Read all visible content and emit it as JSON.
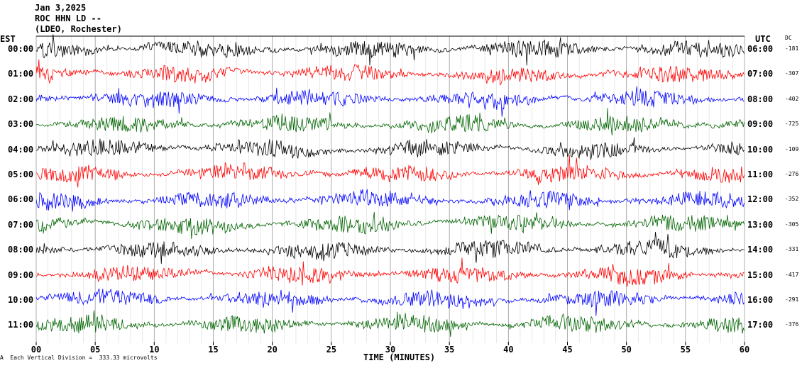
{
  "header": {
    "date": "Jan 3,2025",
    "station": "ROC HHN LD --",
    "network": "(LDEO, Rochester)"
  },
  "left_tz": "EST",
  "right_tz": "UTC",
  "dc_heading": "DC",
  "footer": {
    "logo_mark": "A",
    "scale_text": "Each Vertical Division =  333.33 microvolts"
  },
  "colors": {
    "cycle": [
      "#000000",
      "#ff0000",
      "#0000ff",
      "#006400"
    ]
  },
  "chart_data": {
    "type": "line",
    "title": "ROC HHN LD --",
    "xlabel": "TIME (MINUTES)",
    "xlim": [
      0,
      60
    ],
    "x_ticks": [
      "00",
      "05",
      "10",
      "15",
      "20",
      "25",
      "30",
      "35",
      "40",
      "45",
      "50",
      "55",
      "60"
    ],
    "grid": true,
    "rows": [
      {
        "est": "00:00",
        "utc": "06:00",
        "dc": "-181",
        "color": "#000000"
      },
      {
        "est": "01:00",
        "utc": "07:00",
        "dc": "-307",
        "color": "#ff0000"
      },
      {
        "est": "02:00",
        "utc": "08:00",
        "dc": "-402",
        "color": "#0000ff"
      },
      {
        "est": "03:00",
        "utc": "09:00",
        "dc": "-725",
        "color": "#006400"
      },
      {
        "est": "04:00",
        "utc": "10:00",
        "dc": "-109",
        "color": "#000000"
      },
      {
        "est": "05:00",
        "utc": "11:00",
        "dc": "-276",
        "color": "#ff0000"
      },
      {
        "est": "06:00",
        "utc": "12:00",
        "dc": "-352",
        "color": "#0000ff"
      },
      {
        "est": "07:00",
        "utc": "13:00",
        "dc": "-305",
        "color": "#006400"
      },
      {
        "est": "08:00",
        "utc": "14:00",
        "dc": "-331",
        "color": "#000000"
      },
      {
        "est": "09:00",
        "utc": "15:00",
        "dc": "-417",
        "color": "#ff0000"
      },
      {
        "est": "10:00",
        "utc": "16:00",
        "dc": "-291",
        "color": "#0000ff"
      },
      {
        "est": "11:00",
        "utc": "17:00",
        "dc": "-376",
        "color": "#006400"
      }
    ]
  }
}
